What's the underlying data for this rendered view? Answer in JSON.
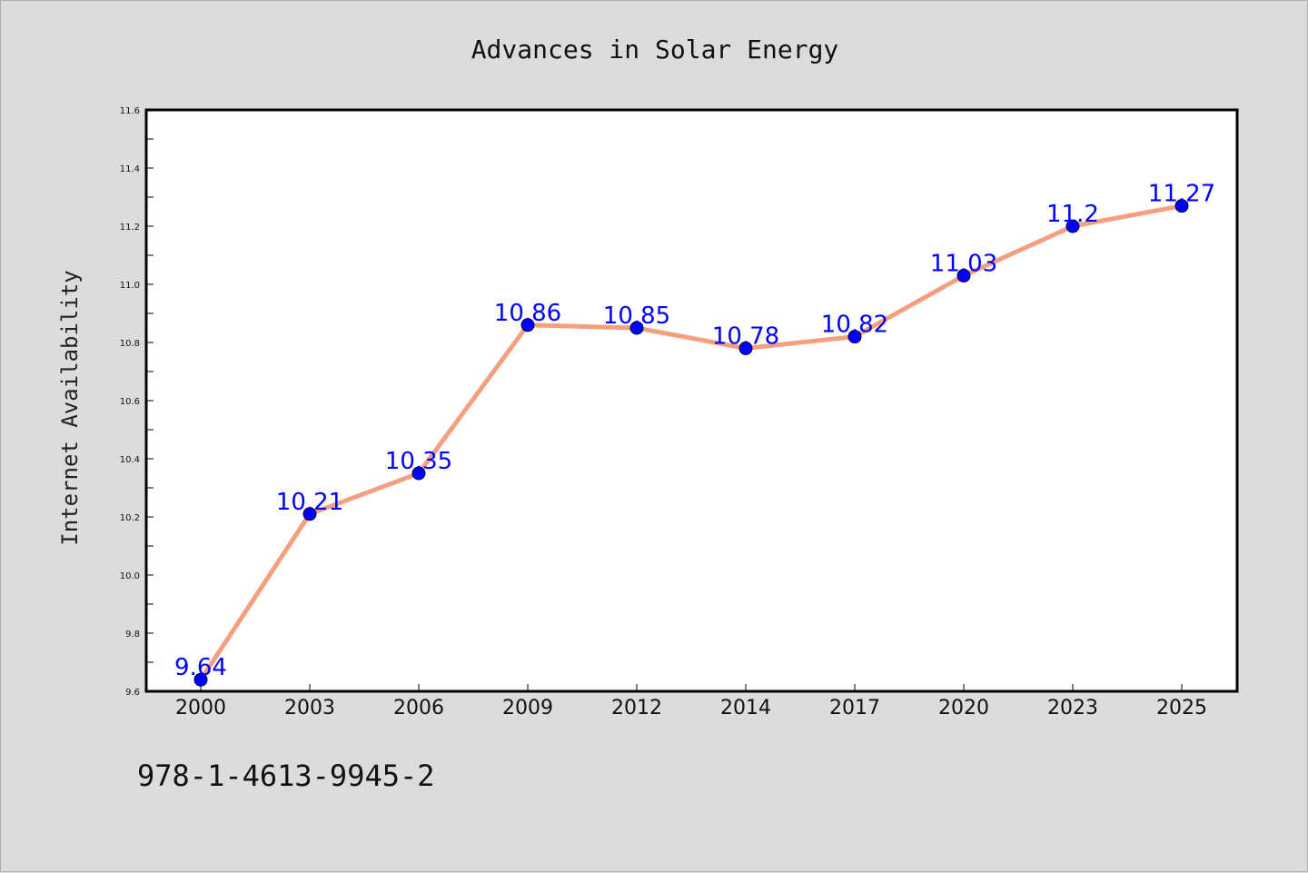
{
  "chart_data": {
    "type": "line",
    "title": "Advances in Solar Energy",
    "xlabel": "",
    "ylabel": "Internet Availability",
    "categories": [
      "2000",
      "2003",
      "2006",
      "2009",
      "2012",
      "2014",
      "2017",
      "2020",
      "2023",
      "2025"
    ],
    "series": [
      {
        "values": [
          9.64,
          10.21,
          10.35,
          10.86,
          10.85,
          10.78,
          10.82,
          11.03,
          11.2,
          11.27
        ],
        "data_labels": [
          "9.64",
          "10.21",
          "10.35",
          "10.86",
          "10.85",
          "10.78",
          "10.82",
          "11.03",
          "11.2",
          "11.27"
        ],
        "line_color": "#f4a080",
        "marker_color": "#0000ff"
      }
    ],
    "ylim": [
      9.6,
      11.6
    ],
    "yticks": [
      "9.6",
      "9.8",
      "10.0",
      "10.2",
      "10.4",
      "10.6",
      "10.8",
      "11.0",
      "11.2",
      "11.4",
      "11.6"
    ],
    "grid": false,
    "legend": "none"
  },
  "footnote": "978-1-4613-9945-2",
  "colors": {
    "background": "#dcdcdc",
    "plot_background": "#ffffff",
    "line": "#f4a080",
    "marker": "#0000ff",
    "data_label": "#0000ff"
  }
}
